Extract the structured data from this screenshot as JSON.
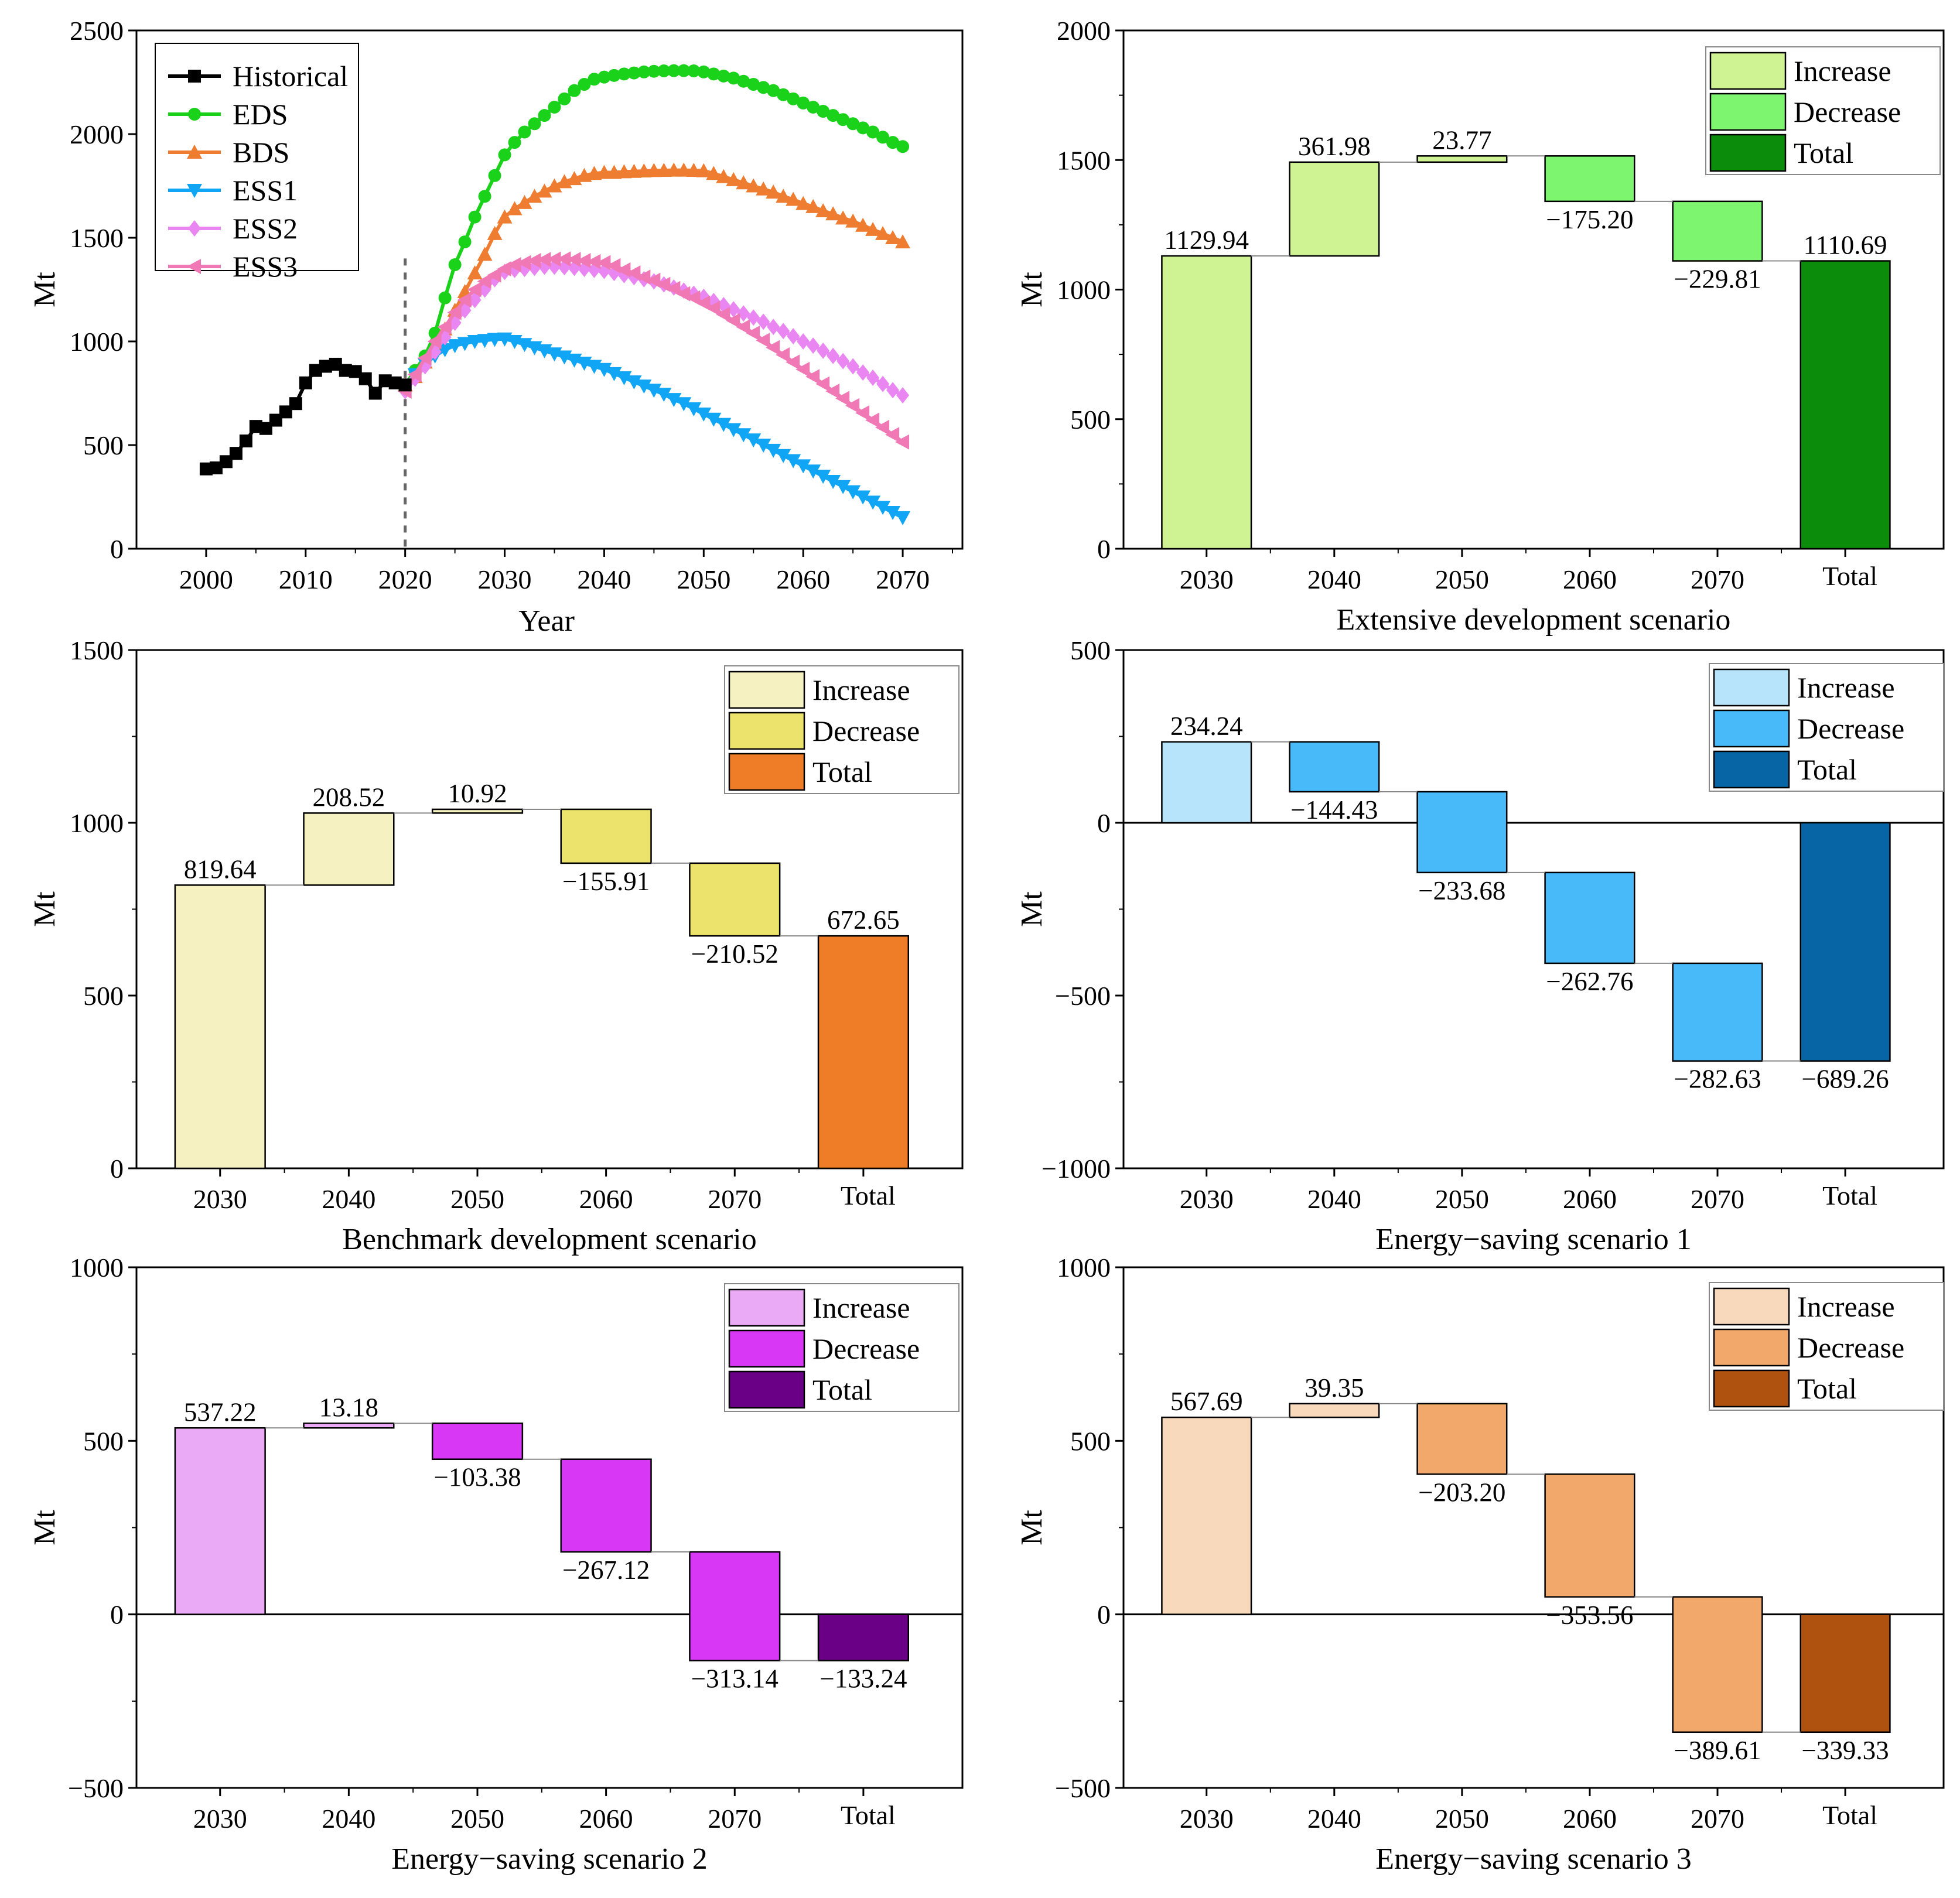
{
  "charts": [
    {
      "type": "line",
      "x": [
        2000,
        2001,
        2002,
        2003,
        2004,
        2005,
        2006,
        2007,
        2008,
        2009,
        2010,
        2011,
        2012,
        2013,
        2014,
        2015,
        2016,
        2017,
        2018,
        2019,
        2020,
        2021,
        2022,
        2023,
        2024,
        2025,
        2026,
        2027,
        2028,
        2029,
        2030,
        2031,
        2032,
        2033,
        2034,
        2035,
        2036,
        2037,
        2038,
        2039,
        2040,
        2041,
        2042,
        2043,
        2044,
        2045,
        2046,
        2047,
        2048,
        2049,
        2050,
        2051,
        2052,
        2053,
        2054,
        2055,
        2056,
        2057,
        2058,
        2059,
        2060,
        2061,
        2062,
        2063,
        2064,
        2065,
        2066,
        2067,
        2068,
        2069,
        2070
      ],
      "xlabel": "Year",
      "ylabel": "Mt",
      "xlim": [
        1993,
        2076
      ],
      "ylim": [
        0,
        2500
      ],
      "xticks": [
        "2000",
        "2010",
        "2020",
        "2030",
        "2040",
        "2050",
        "2060",
        "2070"
      ],
      "yticks": [
        "0",
        "500",
        "1000",
        "1500",
        "2000",
        "2500"
      ],
      "vline": 2020,
      "series": [
        {
          "name": "Historical",
          "color": "#000000",
          "marker": "square",
          "start": 2000,
          "values": [
            385,
            390,
            420,
            460,
            520,
            590,
            580,
            620,
            660,
            700,
            800,
            860,
            880,
            890,
            860,
            855,
            820,
            750,
            810,
            800,
            790
          ]
        },
        {
          "name": "EDS",
          "color": "#19d219",
          "marker": "circle",
          "start": 2020,
          "values": [
            790,
            860,
            930,
            1040,
            1210,
            1370,
            1480,
            1600,
            1700,
            1800,
            1900,
            1960,
            2010,
            2050,
            2090,
            2130,
            2170,
            2210,
            2240,
            2265,
            2275,
            2283,
            2290,
            2295,
            2300,
            2303,
            2305,
            2306,
            2306,
            2305,
            2300,
            2290,
            2280,
            2270,
            2255,
            2240,
            2225,
            2210,
            2190,
            2170,
            2150,
            2130,
            2110,
            2090,
            2070,
            2050,
            2030,
            2010,
            1985,
            1960,
            1940
          ]
        },
        {
          "name": "BDS",
          "color": "#ef7d31",
          "marker": "triangle-up",
          "start": 2020,
          "values": [
            790,
            830,
            900,
            980,
            1060,
            1150,
            1240,
            1330,
            1420,
            1520,
            1600,
            1640,
            1670,
            1700,
            1725,
            1750,
            1770,
            1785,
            1800,
            1810,
            1815,
            1815,
            1818,
            1820,
            1822,
            1824,
            1825,
            1826,
            1826,
            1825,
            1823,
            1810,
            1795,
            1780,
            1765,
            1750,
            1735,
            1720,
            1700,
            1685,
            1665,
            1650,
            1630,
            1615,
            1595,
            1580,
            1560,
            1540,
            1520,
            1500,
            1480
          ]
        },
        {
          "name": "ESS1",
          "color": "#10a5f5",
          "marker": "triangle-down",
          "start": 2020,
          "values": [
            790,
            840,
            890,
            930,
            960,
            980,
            990,
            1000,
            1005,
            1010,
            1012,
            1000,
            985,
            970,
            955,
            940,
            925,
            910,
            895,
            880,
            865,
            845,
            825,
            805,
            785,
            765,
            745,
            720,
            700,
            675,
            650,
            625,
            600,
            575,
            550,
            525,
            500,
            475,
            450,
            425,
            400,
            375,
            350,
            325,
            300,
            275,
            250,
            225,
            200,
            175,
            150
          ]
        },
        {
          "name": "ESS2",
          "color": "#ea86f2",
          "marker": "diamond",
          "start": 2020,
          "values": [
            760,
            820,
            880,
            950,
            1020,
            1090,
            1150,
            1200,
            1250,
            1300,
            1335,
            1345,
            1350,
            1355,
            1360,
            1360,
            1358,
            1355,
            1350,
            1345,
            1340,
            1330,
            1320,
            1310,
            1300,
            1290,
            1275,
            1260,
            1245,
            1230,
            1215,
            1195,
            1175,
            1155,
            1135,
            1115,
            1095,
            1070,
            1050,
            1025,
            1000,
            980,
            955,
            930,
            905,
            880,
            850,
            825,
            795,
            765,
            740
          ]
        },
        {
          "name": "ESS3",
          "color": "#f078b4",
          "marker": "triangle-left",
          "start": 2020,
          "values": [
            760,
            840,
            920,
            1000,
            1070,
            1140,
            1200,
            1250,
            1290,
            1320,
            1350,
            1370,
            1380,
            1390,
            1395,
            1397,
            1398,
            1395,
            1390,
            1385,
            1380,
            1365,
            1345,
            1330,
            1310,
            1295,
            1275,
            1255,
            1230,
            1210,
            1185,
            1160,
            1130,
            1100,
            1070,
            1040,
            1005,
            970,
            935,
            900,
            865,
            830,
            795,
            760,
            725,
            690,
            655,
            620,
            585,
            550,
            515
          ]
        }
      ]
    },
    {
      "type": "waterfall",
      "title": "Extensive development scenario",
      "ylabel": "Mt",
      "ylim": [
        0,
        2000
      ],
      "yticks": [
        "0",
        "500",
        "1000",
        "1500",
        "2000"
      ],
      "categories": [
        "2030",
        "2040",
        "2050",
        "2060",
        "2070",
        "Total"
      ],
      "values": [
        1129.94,
        361.98,
        23.77,
        -175.2,
        -229.81,
        1110.69
      ],
      "labels": [
        "1129.94",
        "361.98",
        "23.77",
        "−175.20",
        "−229.81",
        "1110.69"
      ],
      "colors": {
        "increase": "#cff292",
        "decrease": "#7df56e",
        "total": "#0b8c0b"
      },
      "legend": [
        "Increase",
        "Decrease",
        "Total"
      ]
    },
    {
      "type": "waterfall",
      "title": "Benchmark development scenario",
      "ylabel": "Mt",
      "ylim": [
        0,
        1500
      ],
      "yticks": [
        "0",
        "500",
        "1000",
        "1500"
      ],
      "categories": [
        "2030",
        "2040",
        "2050",
        "2060",
        "2070",
        "Total"
      ],
      "values": [
        819.64,
        208.52,
        10.92,
        -155.91,
        -210.52,
        672.65
      ],
      "labels": [
        "819.64",
        "208.52",
        "10.92",
        "−155.91",
        "−210.52",
        "672.65"
      ],
      "colors": {
        "increase": "#f5f1c0",
        "decrease": "#ece36c",
        "total": "#ef7d27"
      },
      "legend": [
        "Increase",
        "Decrease",
        "Total"
      ]
    },
    {
      "type": "waterfall",
      "title": "Energy−saving scenario 1",
      "ylabel": "Mt",
      "ylim": [
        -1000,
        500
      ],
      "yticks": [
        "−1000",
        "−500",
        "0",
        "500"
      ],
      "categories": [
        "2030",
        "2040",
        "2050",
        "2060",
        "2070",
        "Total"
      ],
      "values": [
        234.24,
        -144.43,
        -233.68,
        -262.76,
        -282.63,
        -689.26
      ],
      "labels": [
        "234.24",
        "−144.43",
        "−233.68",
        "−262.76",
        "−282.63",
        "−689.26"
      ],
      "colors": {
        "increase": "#b7e4fb",
        "decrease": "#48bafa",
        "total": "#0865a5"
      },
      "legend": [
        "Increase",
        "Decrease",
        "Total"
      ]
    },
    {
      "type": "waterfall",
      "title": "Energy−saving scenario 2",
      "ylabel": "Mt",
      "ylim": [
        -500,
        1000
      ],
      "yticks": [
        "−500",
        "0",
        "500",
        "1000"
      ],
      "categories": [
        "2030",
        "2040",
        "2050",
        "2060",
        "2070",
        "Total"
      ],
      "values": [
        537.22,
        13.18,
        -103.38,
        -267.12,
        -313.14,
        -133.24
      ],
      "labels": [
        "537.22",
        "13.18",
        "−103.38",
        "−267.12",
        "−313.14",
        "−133.24"
      ],
      "colors": {
        "increase": "#eaaaf5",
        "decrease": "#d837f5",
        "total": "#690085"
      },
      "legend": [
        "Increase",
        "Decrease",
        "Total"
      ]
    },
    {
      "type": "waterfall",
      "title": "Energy−saving scenario 3",
      "ylabel": "Mt",
      "ylim": [
        -500,
        1000
      ],
      "yticks": [
        "−500",
        "0",
        "500",
        "1000"
      ],
      "categories": [
        "2030",
        "2040",
        "2050",
        "2060",
        "2070",
        "Total"
      ],
      "values": [
        567.69,
        39.35,
        -203.2,
        -353.56,
        -389.61,
        -339.33
      ],
      "labels": [
        "567.69",
        "39.35",
        "−203.20",
        "−353.56",
        "−389.61",
        "−339.33"
      ],
      "colors": {
        "increase": "#f9d9bc",
        "decrease": "#f1a86a",
        "total": "#b0520f"
      },
      "legend": [
        "Increase",
        "Decrease",
        "Total"
      ]
    }
  ]
}
